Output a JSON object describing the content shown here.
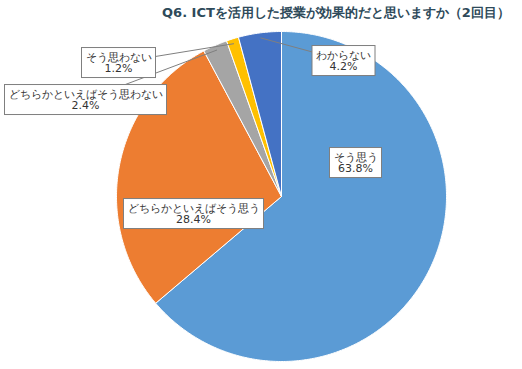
{
  "chart_data": {
    "type": "pie",
    "title": "Q6. ICTを活用した授業が効果的だと思いますか（2回目）",
    "categories": [
      "そう思う",
      "どちらかといえばそう思う",
      "どちらかといえばそう思わない",
      "そう思わない",
      "わからない"
    ],
    "values": [
      63.8,
      28.4,
      2.4,
      1.2,
      4.2
    ],
    "value_labels": [
      "63.8%",
      "28.4%",
      "2.4%",
      "1.2%",
      "4.2%"
    ],
    "colors": [
      "#5b9bd5",
      "#ed7d31",
      "#a5a5a5",
      "#ffc000",
      "#4472c4"
    ],
    "data_labels": true
  }
}
